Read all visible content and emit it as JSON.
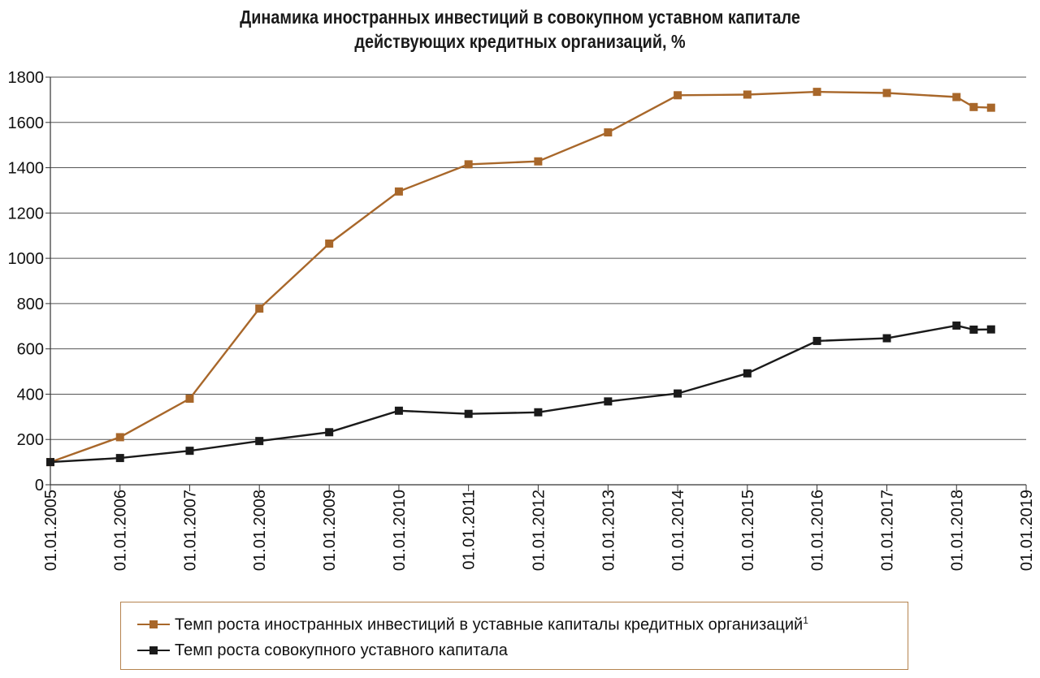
{
  "chart_data": {
    "type": "line",
    "title_lines": [
      "Динамика иностранных инвестиций в совокупном уставном капитале",
      "действующих кредитных организаций, %"
    ],
    "xlabel": "",
    "ylabel": "",
    "ylim": [
      0,
      1800
    ],
    "yticks": [
      "0",
      "200",
      "400",
      "600",
      "800",
      "1000",
      "1200",
      "1400",
      "1600",
      "1800"
    ],
    "xlim": [
      "2005-01-01",
      "2019-01-01"
    ],
    "xticks": [
      "01.01.2005",
      "01.01.2006",
      "01.01.2007",
      "01.01.2008",
      "01.01.2009",
      "01.01.2010",
      "01.01.2011",
      "01.01.2012",
      "01.01.2013",
      "01.01.2014",
      "01.01.2015",
      "01.01.2016",
      "01.01.2017",
      "01.01.2018",
      "01.01.2019"
    ],
    "grid": true,
    "legend_position": "bottom",
    "series": [
      {
        "name": "Темп роста иностранных инвестиций в уставные капиталы кредитных организаций",
        "name_footnote": "1",
        "color": "#a8672a",
        "marker": "square",
        "points": [
          {
            "x": "2005-01-01",
            "y": 100
          },
          {
            "x": "2006-01-01",
            "y": 210
          },
          {
            "x": "2007-01-01",
            "y": 380
          },
          {
            "x": "2008-01-01",
            "y": 778
          },
          {
            "x": "2009-01-01",
            "y": 1065
          },
          {
            "x": "2010-01-01",
            "y": 1295
          },
          {
            "x": "2011-01-01",
            "y": 1415
          },
          {
            "x": "2012-01-01",
            "y": 1428
          },
          {
            "x": "2013-01-01",
            "y": 1556
          },
          {
            "x": "2014-01-01",
            "y": 1720
          },
          {
            "x": "2015-01-01",
            "y": 1723
          },
          {
            "x": "2016-01-01",
            "y": 1735
          },
          {
            "x": "2017-01-01",
            "y": 1730
          },
          {
            "x": "2018-01-01",
            "y": 1712
          },
          {
            "x": "2018-04-01",
            "y": 1668
          },
          {
            "x": "2018-07-01",
            "y": 1665
          }
        ]
      },
      {
        "name": "Темп роста совокупного уставного капитала",
        "name_footnote": "",
        "color": "#1a1a1a",
        "marker": "square",
        "points": [
          {
            "x": "2005-01-01",
            "y": 100
          },
          {
            "x": "2006-01-01",
            "y": 118
          },
          {
            "x": "2007-01-01",
            "y": 150
          },
          {
            "x": "2008-01-01",
            "y": 193
          },
          {
            "x": "2009-01-01",
            "y": 232
          },
          {
            "x": "2010-01-01",
            "y": 327
          },
          {
            "x": "2011-01-01",
            "y": 313
          },
          {
            "x": "2012-01-01",
            "y": 320
          },
          {
            "x": "2013-01-01",
            "y": 368
          },
          {
            "x": "2014-01-01",
            "y": 403
          },
          {
            "x": "2015-01-01",
            "y": 492
          },
          {
            "x": "2016-01-01",
            "y": 635
          },
          {
            "x": "2017-01-01",
            "y": 647
          },
          {
            "x": "2018-01-01",
            "y": 703
          },
          {
            "x": "2018-04-01",
            "y": 685
          },
          {
            "x": "2018-07-01",
            "y": 686
          }
        ]
      }
    ]
  }
}
